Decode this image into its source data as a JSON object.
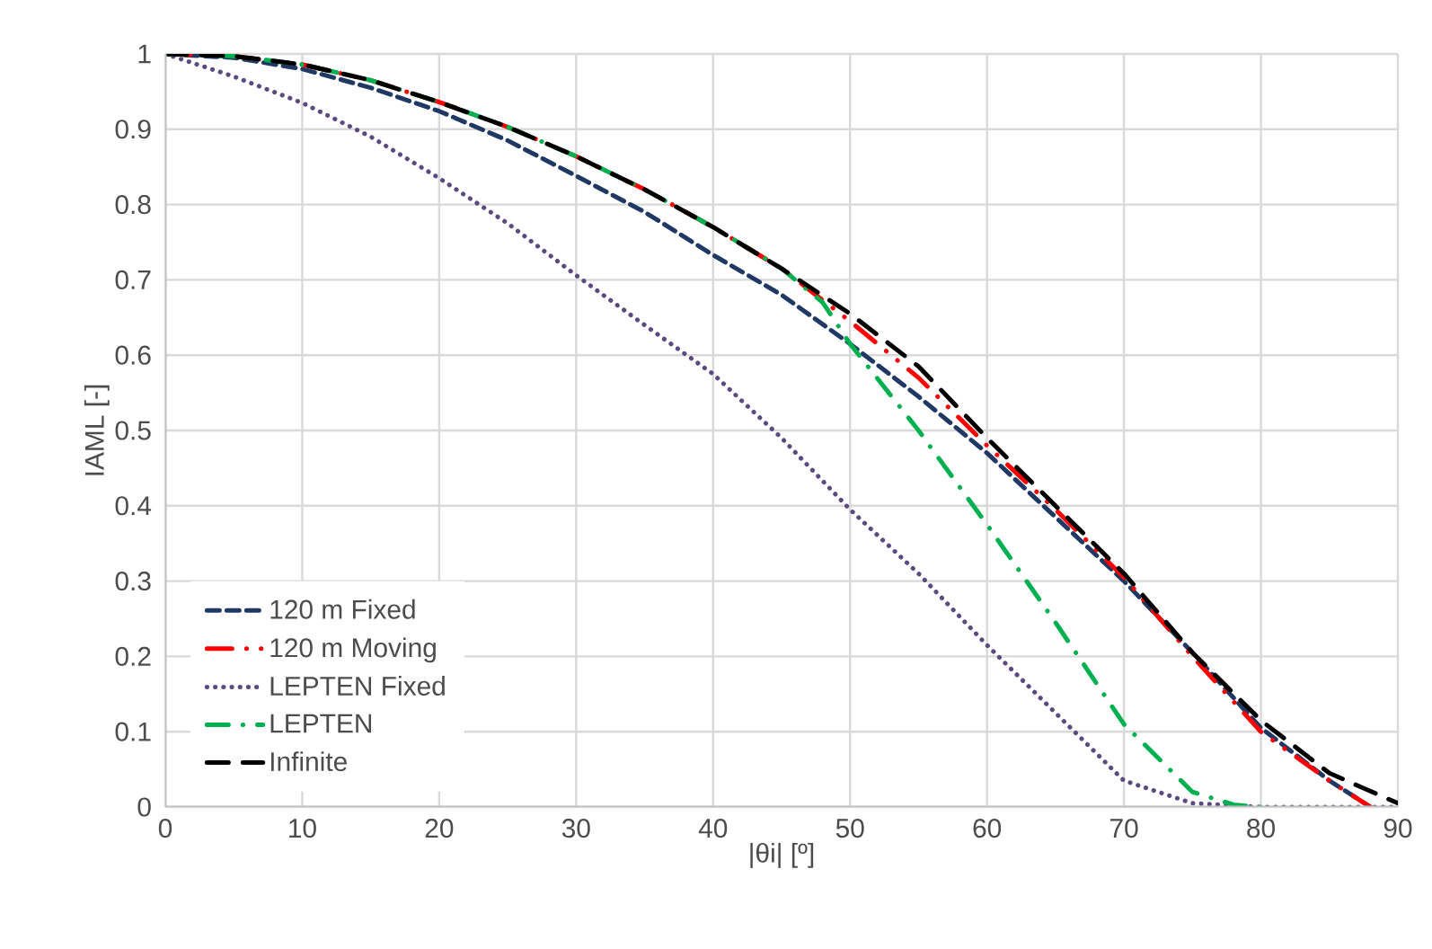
{
  "chart_data": {
    "type": "line",
    "xlabel": "|θi| [º]",
    "ylabel": "IAML [-]",
    "xlim": [
      0,
      90
    ],
    "ylim": [
      0,
      1
    ],
    "xticks": [
      0,
      10,
      20,
      30,
      40,
      50,
      60,
      70,
      80,
      90
    ],
    "yticks": [
      0,
      0.1,
      0.2,
      0.3,
      0.4,
      0.5,
      0.6,
      0.7,
      0.8,
      0.9,
      1
    ],
    "grid": true,
    "legend": "bottom left",
    "marker": "none",
    "series": [
      {
        "name": "120 m Fixed",
        "color": "#203864",
        "line_style": "dashed",
        "x": [
          0,
          5,
          10,
          15,
          20,
          25,
          30,
          35,
          40,
          45,
          50,
          55,
          60,
          65,
          70,
          75,
          80,
          85,
          88
        ],
        "values": [
          1,
          0.995,
          0.98,
          0.955,
          0.924,
          0.885,
          0.838,
          0.79,
          0.733,
          0.68,
          0.615,
          0.545,
          0.47,
          0.385,
          0.3,
          0.205,
          0.105,
          0.035,
          0
        ]
      },
      {
        "name": "120 m Moving",
        "color": "#ff0000",
        "line_style": "dashdotdot",
        "x": [
          0,
          5,
          10,
          15,
          20,
          25,
          30,
          35,
          40,
          45,
          50,
          55,
          60,
          65,
          70,
          75,
          80,
          85,
          88
        ],
        "values": [
          1,
          0.997,
          0.986,
          0.965,
          0.936,
          0.903,
          0.864,
          0.82,
          0.77,
          0.715,
          0.645,
          0.57,
          0.48,
          0.395,
          0.305,
          0.2,
          0.1,
          0.035,
          0
        ]
      },
      {
        "name": "LEPTEN Fixed",
        "color": "#5b4a7f",
        "line_style": "dotted",
        "x": [
          0,
          5,
          10,
          15,
          20,
          25,
          30,
          35,
          40,
          45,
          50,
          55,
          60,
          65,
          70,
          75,
          80,
          85,
          90
        ],
        "values": [
          1,
          0.97,
          0.935,
          0.89,
          0.835,
          0.775,
          0.706,
          0.64,
          0.575,
          0.49,
          0.395,
          0.31,
          0.215,
          0.125,
          0.035,
          0.005,
          0,
          0,
          0
        ]
      },
      {
        "name": "LEPTEN",
        "color": "#00b050",
        "line_style": "dashdot",
        "x": [
          0,
          5,
          10,
          15,
          20,
          25,
          30,
          35,
          40,
          45,
          48,
          50,
          55,
          60,
          65,
          70,
          75,
          78,
          80
        ],
        "values": [
          1,
          0.997,
          0.986,
          0.965,
          0.936,
          0.903,
          0.864,
          0.82,
          0.77,
          0.715,
          0.67,
          0.615,
          0.5,
          0.375,
          0.245,
          0.11,
          0.02,
          0.003,
          0
        ]
      },
      {
        "name": "Infinite",
        "color": "#000000",
        "line_style": "longdashed",
        "x": [
          0,
          5,
          10,
          15,
          20,
          25,
          30,
          35,
          40,
          45,
          50,
          55,
          60,
          65,
          70,
          75,
          80,
          85,
          90
        ],
        "values": [
          1,
          0.997,
          0.986,
          0.965,
          0.936,
          0.903,
          0.864,
          0.82,
          0.77,
          0.715,
          0.655,
          0.585,
          0.49,
          0.4,
          0.31,
          0.205,
          0.115,
          0.045,
          0.005
        ]
      }
    ]
  }
}
